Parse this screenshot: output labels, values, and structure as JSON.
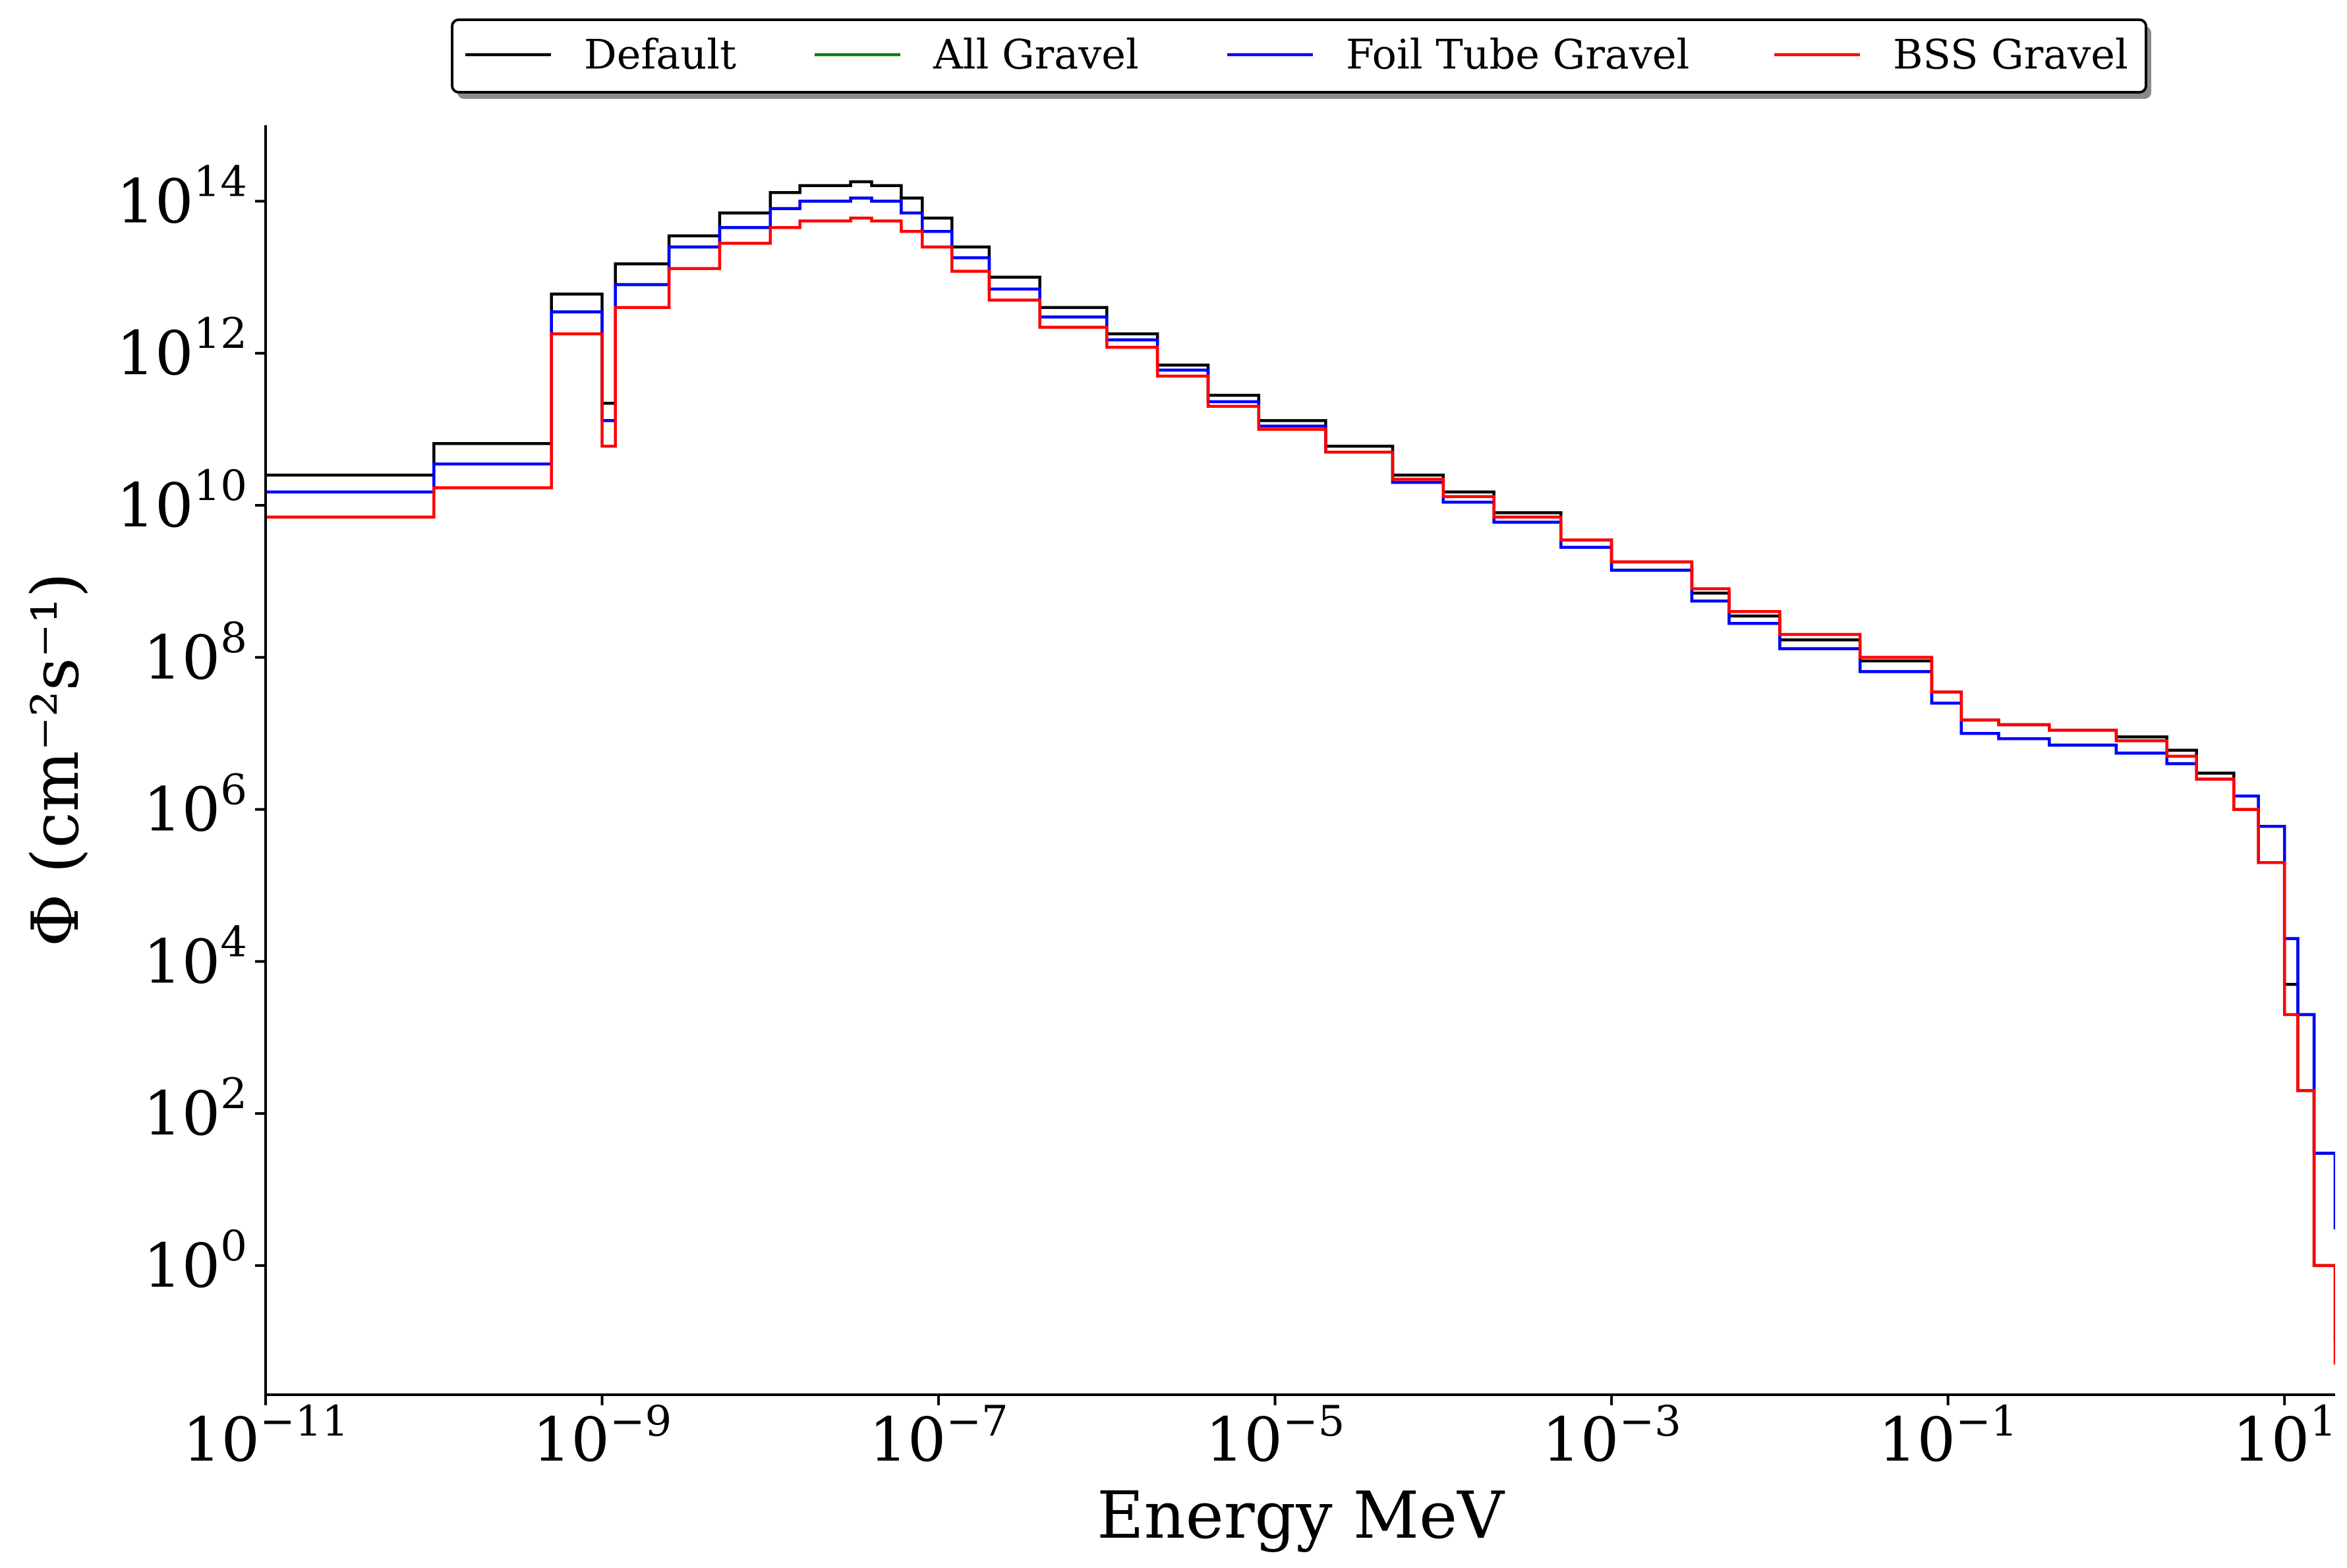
{
  "chart_data": {
    "type": "line",
    "step": true,
    "xscale": "log",
    "yscale": "log",
    "xlim": [
      1e-11,
      20
    ],
    "ylim": [
      0.02,
      1000000000000000.0
    ],
    "xlabel": "Energy MeV",
    "ylabel": "Φ (cm⁻²s⁻¹)",
    "xticks": [
      {
        "value": 1e-11,
        "base": "10",
        "exp": "−11"
      },
      {
        "value": 1e-09,
        "base": "10",
        "exp": "−9"
      },
      {
        "value": 1e-07,
        "base": "10",
        "exp": "−7"
      },
      {
        "value": 1e-05,
        "base": "10",
        "exp": "−5"
      },
      {
        "value": 0.001,
        "base": "10",
        "exp": "−3"
      },
      {
        "value": 0.1,
        "base": "10",
        "exp": "−1"
      },
      {
        "value": 10,
        "base": "10",
        "exp": "1"
      }
    ],
    "yticks": [
      {
        "value": 1,
        "base": "10",
        "exp": "0"
      },
      {
        "value": 100,
        "base": "10",
        "exp": "2"
      },
      {
        "value": 10000.0,
        "base": "10",
        "exp": "4"
      },
      {
        "value": 1000000.0,
        "base": "10",
        "exp": "6"
      },
      {
        "value": 100000000.0,
        "base": "10",
        "exp": "8"
      },
      {
        "value": 10000000000.0,
        "base": "10",
        "exp": "10"
      },
      {
        "value": 1000000000000.0,
        "base": "10",
        "exp": "12"
      },
      {
        "value": 100000000000000.0,
        "base": "10",
        "exp": "14"
      }
    ],
    "legend": {
      "placement": "top-center",
      "columns": 4
    },
    "series": [
      {
        "name": "Default",
        "color": "#000000",
        "x": [
          1e-11,
          1e-10,
          5e-10,
          1e-09,
          1.2e-09,
          2.5e-09,
          5e-09,
          1e-08,
          1.5e-08,
          3e-08,
          4e-08,
          6e-08,
          8e-08,
          1.2e-07,
          2e-07,
          4e-07,
          1e-06,
          2e-06,
          4e-06,
          8e-06,
          2e-05,
          5e-05,
          0.0001,
          0.0002,
          0.0005,
          0.001,
          0.003,
          0.005,
          0.01,
          0.03,
          0.08,
          0.12,
          0.2,
          0.4,
          1,
          2,
          3,
          5,
          7,
          10,
          12,
          15,
          20
        ],
        "y": [
          25000000000.0,
          65000000000.0,
          6000000000000.0,
          220000000000.0,
          15000000000000.0,
          35000000000000.0,
          70000000000000.0,
          130000000000000.0,
          160000000000000.0,
          180000000000000.0,
          160000000000000.0,
          110000000000000.0,
          60000000000000.0,
          25000000000000.0,
          10000000000000.0,
          4000000000000.0,
          1800000000000.0,
          700000000000.0,
          280000000000.0,
          130000000000.0,
          60000000000.0,
          25000000000.0,
          15000000000.0,
          8000000000.0,
          3500000000.0,
          1800000000.0,
          700000000.0,
          350000000.0,
          170000000.0,
          90000000.0,
          35000000.0,
          15000000.0,
          13000000.0,
          11000000.0,
          9000000.0,
          6000000.0,
          3000000.0,
          1000000.0,
          200000.0,
          5000.0,
          200.0,
          1,
          0.1
        ]
      },
      {
        "name": "All Gravel",
        "color": "#008000",
        "x": [
          1e-11,
          1e-10,
          5e-10,
          1e-09,
          1.2e-09,
          2.5e-09,
          5e-09,
          1e-08,
          1.5e-08,
          3e-08,
          4e-08,
          6e-08,
          8e-08,
          1.2e-07,
          2e-07,
          4e-07,
          1e-06,
          2e-06,
          4e-06,
          8e-06,
          2e-05,
          5e-05,
          0.0001,
          0.0002,
          0.0005,
          0.001,
          0.003,
          0.005,
          0.01,
          0.03,
          0.08,
          0.12,
          0.2,
          0.4,
          1,
          2,
          3,
          5,
          7,
          10,
          12,
          15,
          20
        ],
        "y": [
          15000000000.0,
          35000000000.0,
          3500000000000.0,
          130000000000.0,
          8000000000000.0,
          25000000000000.0,
          45000000000000.0,
          80000000000000.0,
          100000000000000.0,
          110000000000000.0,
          100000000000000.0,
          70000000000000.0,
          40000000000000.0,
          18000000000000.0,
          7000000000000.0,
          3000000000000.0,
          1500000000000.0,
          600000000000.0,
          230000000000.0,
          110000000000.0,
          50000000000.0,
          20000000000.0,
          11000000000.0,
          6000000000.0,
          2800000000.0,
          1400000000.0,
          550000000.0,
          280000000.0,
          130000000.0,
          65000000.0,
          25000000.0,
          10000000.0,
          8500000.0,
          7000000.0,
          5500000.0,
          4000000.0,
          2500000.0,
          1500000.0,
          600000.0,
          20000.0,
          2000.0,
          30,
          3
        ]
      },
      {
        "name": "Foil Tube Gravel",
        "color": "#0000ff",
        "x": [
          1e-11,
          1e-10,
          5e-10,
          1e-09,
          1.2e-09,
          2.5e-09,
          5e-09,
          1e-08,
          1.5e-08,
          3e-08,
          4e-08,
          6e-08,
          8e-08,
          1.2e-07,
          2e-07,
          4e-07,
          1e-06,
          2e-06,
          4e-06,
          8e-06,
          2e-05,
          5e-05,
          0.0001,
          0.0002,
          0.0005,
          0.001,
          0.003,
          0.005,
          0.01,
          0.03,
          0.08,
          0.12,
          0.2,
          0.4,
          1,
          2,
          3,
          5,
          7,
          10,
          12,
          15,
          20
        ],
        "y": [
          15000000000.0,
          35000000000.0,
          3500000000000.0,
          130000000000.0,
          8000000000000.0,
          25000000000000.0,
          45000000000000.0,
          80000000000000.0,
          100000000000000.0,
          110000000000000.0,
          100000000000000.0,
          70000000000000.0,
          40000000000000.0,
          18000000000000.0,
          7000000000000.0,
          3000000000000.0,
          1500000000000.0,
          600000000000.0,
          230000000000.0,
          110000000000.0,
          50000000000.0,
          20000000000.0,
          11000000000.0,
          6000000000.0,
          2800000000.0,
          1400000000.0,
          550000000.0,
          280000000.0,
          130000000.0,
          65000000.0,
          25000000.0,
          10000000.0,
          8500000.0,
          7000000.0,
          5500000.0,
          4000000.0,
          2500000.0,
          1500000.0,
          600000.0,
          20000.0,
          2000.0,
          30,
          3
        ]
      },
      {
        "name": "BSS Gravel",
        "color": "#ff0000",
        "x": [
          1e-11,
          1e-10,
          5e-10,
          1e-09,
          1.2e-09,
          2.5e-09,
          5e-09,
          1e-08,
          1.5e-08,
          3e-08,
          4e-08,
          6e-08,
          8e-08,
          1.2e-07,
          2e-07,
          4e-07,
          1e-06,
          2e-06,
          4e-06,
          8e-06,
          2e-05,
          5e-05,
          0.0001,
          0.0002,
          0.0005,
          0.001,
          0.003,
          0.005,
          0.01,
          0.03,
          0.08,
          0.12,
          0.2,
          0.4,
          1,
          2,
          3,
          5,
          7,
          10,
          12,
          15,
          20
        ],
        "y": [
          7000000000.0,
          17000000000.0,
          1800000000000.0,
          60000000000.0,
          4000000000000.0,
          13000000000000.0,
          28000000000000.0,
          45000000000000.0,
          55000000000000.0,
          60000000000000.0,
          55000000000000.0,
          40000000000000.0,
          25000000000000.0,
          12000000000000.0,
          5000000000000.0,
          2200000000000.0,
          1200000000000.0,
          500000000000.0,
          200000000000.0,
          100000000000.0,
          50000000000.0,
          22000000000.0,
          13000000000.0,
          7000000000.0,
          3500000000.0,
          1800000000.0,
          800000000.0,
          400000000.0,
          200000000.0,
          100000000.0,
          35000000.0,
          15000000.0,
          13000000.0,
          11000000.0,
          8000000.0,
          5000000.0,
          2500000.0,
          1000000.0,
          200000.0,
          2000.0,
          200.0,
          1,
          0.05
        ]
      }
    ]
  }
}
